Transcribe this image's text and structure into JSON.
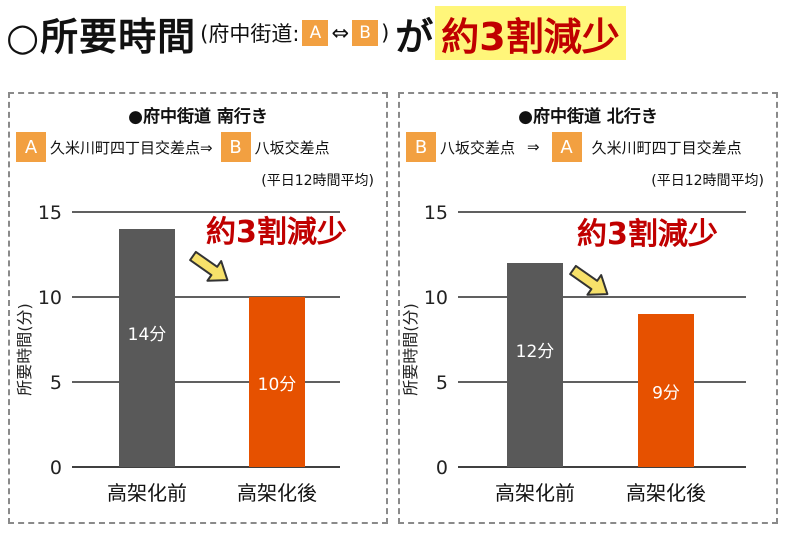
{
  "title": {
    "main": "○所要時間",
    "paren_open": "(府中街道:",
    "badge_a": "A",
    "arrow": "⇔",
    "badge_b": "B",
    "paren_close": ")",
    "ga": "が",
    "highlight": "約3割減少"
  },
  "colors": {
    "badge": "#f2a041",
    "before_bar": "#595959",
    "after_bar": "#e65100",
    "highlight_bg": "#fff67a",
    "annotation": "#c00000"
  },
  "panels": [
    {
      "heading": "●府中街道 南行き",
      "route": {
        "from_badge": "A",
        "from": "久米川町四丁目交差点⇒",
        "to_badge": "B",
        "to": "八坂交差点"
      },
      "condition": "(平日12時間平均)",
      "annotation": "約3割減少"
    },
    {
      "heading": "●府中街道 北行き",
      "route": {
        "from_badge": "B",
        "from": "八坂交差点",
        "arrow": "⇒",
        "to_badge": "A",
        "to": "久米川町四丁目交差点"
      },
      "condition": "(平日12時間平均)",
      "annotation": "約3割減少"
    }
  ],
  "chart_data": [
    {
      "type": "bar",
      "categories": [
        "高架化前",
        "高架化後"
      ],
      "values": [
        14,
        10
      ],
      "data_labels": [
        "14分",
        "10分"
      ],
      "ylabel": "所要時間(分)",
      "ylim": [
        0,
        15
      ],
      "yticks": [
        0,
        5,
        10,
        15
      ],
      "grid": true
    },
    {
      "type": "bar",
      "categories": [
        "高架化前",
        "高架化後"
      ],
      "values": [
        12,
        9
      ],
      "data_labels": [
        "12分",
        "9分"
      ],
      "ylabel": "所要時間(分)",
      "ylim": [
        0,
        15
      ],
      "yticks": [
        0,
        5,
        10,
        15
      ],
      "grid": true
    }
  ]
}
